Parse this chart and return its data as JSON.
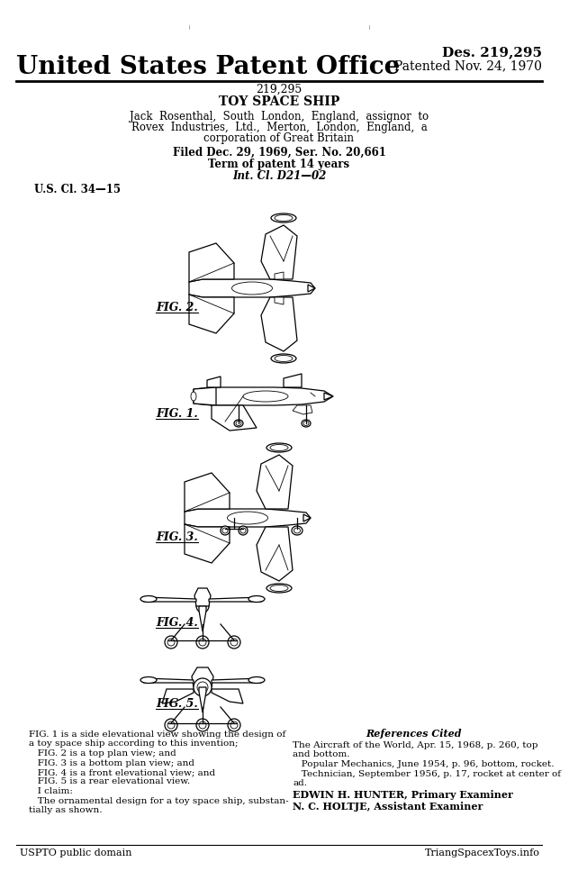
{
  "bg_color": "#ffffff",
  "title_office": "United States Patent Office",
  "des_number": "Des. 219,295",
  "patented": "Patented Nov. 24, 1970",
  "patent_number": "219,295",
  "patent_title": "TOY SPACE SHIP",
  "inventor_line1": "Jack  Rosenthal,  South  London,  England,  assignor  to",
  "inventor_line2": "Rovex  Industries,  Ltd.,  Merton,  London,  England,  a",
  "inventor_line3": "corporation of Great Britain",
  "filed": "Filed Dec. 29, 1969, Ser. No. 20,661",
  "term": "Term of patent 14 years",
  "int_cl": "Int. Cl. D21—02",
  "us_cl": "U.S. Cl. 34—15",
  "desc_left_lines": [
    "FIG. 1 is a side elevational view showing the design of",
    "a toy space ship according to this invention;",
    "   FIG. 2 is a top plan view; and",
    "   FIG. 3 is a bottom plan view; and",
    "   FIG. 4 is a front elevational view; and",
    "   FIG. 5 is a rear elevational view.",
    "   I claim:",
    "   The ornamental design for a toy space ship, substan-",
    "tially as shown."
  ],
  "references_title": "References Cited",
  "references_lines": [
    "The Aircraft of the World, Apr. 15, 1968, p. 260, top",
    "and bottom.",
    "   Popular Mechanics, June 1954, p. 96, bottom, rocket.",
    "   Technician, September 1956, p. 17, rocket at center of",
    "ad."
  ],
  "examiner1": "EDWIN H. HUNTER, Primary Examiner",
  "examiner2": "N. C. HOLTJE, Assistant Examiner",
  "footer_left": "USPTO public domain",
  "footer_right": "TriangSpacexToys.info"
}
